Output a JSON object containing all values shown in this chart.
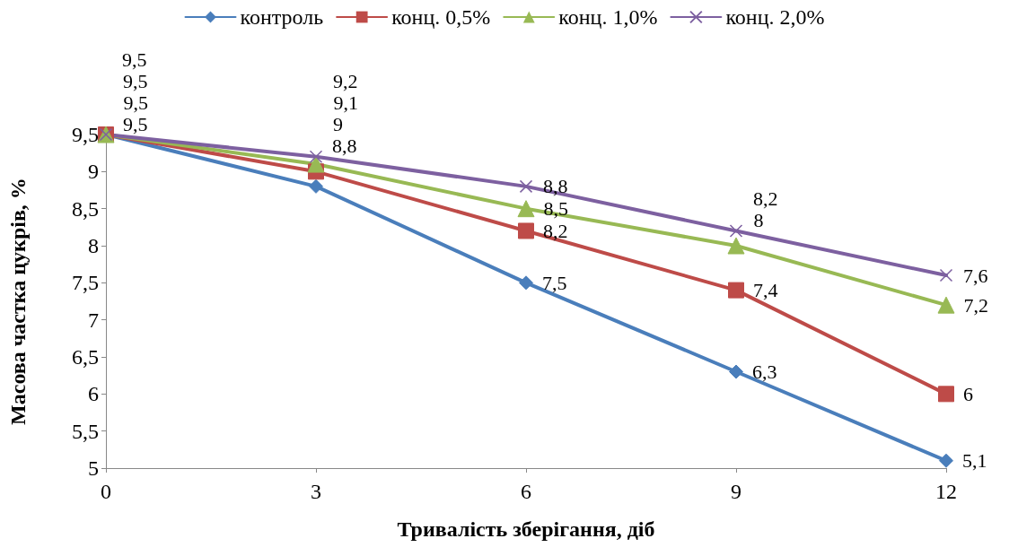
{
  "chart_data": {
    "type": "line",
    "xlabel": "Тривалість зберігання, діб",
    "ylabel": "Масова частка цукрів, %",
    "x": [
      0,
      3,
      6,
      9,
      12
    ],
    "series": [
      {
        "name": "контроль",
        "color": "#4a7ebb",
        "marker": "diamond",
        "values": [
          9.5,
          8.8,
          7.5,
          6.3,
          5.1
        ],
        "value_labels": [
          "9,5",
          "8,8",
          "7,5",
          "6,3",
          "5,1"
        ]
      },
      {
        "name": "конц. 0,5%",
        "color": "#be4b48",
        "marker": "square",
        "values": [
          9.5,
          9.0,
          8.2,
          7.4,
          6.0
        ],
        "value_labels": [
          "9,5",
          "9",
          "8,2",
          "7,4",
          "6"
        ]
      },
      {
        "name": "конц. 1,0%",
        "color": "#98b954",
        "marker": "triangle",
        "values": [
          9.5,
          9.1,
          8.5,
          8.0,
          7.2
        ],
        "value_labels": [
          "9,5",
          "9,1",
          "8,5",
          "8",
          "7,2"
        ]
      },
      {
        "name": "конц. 2,0%",
        "color": "#7d60a0",
        "marker": "cross",
        "values": [
          9.5,
          9.2,
          8.8,
          8.2,
          7.6
        ],
        "value_labels": [
          "9,5",
          "9,2",
          "8,8",
          "8,2",
          "7,6"
        ]
      }
    ],
    "xlim": [
      0,
      12
    ],
    "xticks": [
      0,
      3,
      6,
      9,
      12
    ],
    "ylim": [
      5,
      9.5
    ],
    "yticks": [
      5,
      {
        "value": 5.5,
        "label": "5,5"
      },
      6,
      {
        "value": 6.5,
        "label": "6,5"
      },
      7,
      {
        "value": 7.5,
        "label": "7,5"
      },
      8,
      {
        "value": 8.5,
        "label": "8,5"
      },
      9,
      {
        "value": 9.5,
        "label": "9,5"
      }
    ],
    "grid": false,
    "legend": "top",
    "line_style": "solid"
  }
}
